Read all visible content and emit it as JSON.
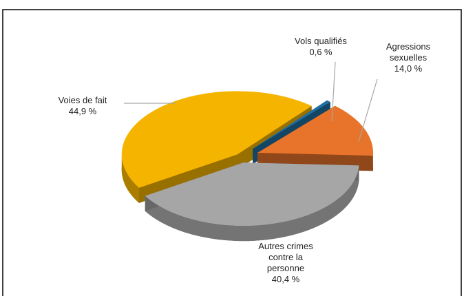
{
  "chart_data": {
    "type": "pie3d",
    "categories": [
      "Vols qualifiés",
      "Agressions sexuelles",
      "Autres crimes contre la personne",
      "Voies de fait"
    ],
    "values": [
      0.6,
      14.0,
      40.4,
      44.9
    ],
    "value_labels": [
      "0,6 %",
      "14,0 %",
      "40,4 %",
      "44,9 %"
    ],
    "colors": [
      "#1f6fa3",
      "#e8732a",
      "#a6a6a6",
      "#f5b400"
    ]
  }
}
